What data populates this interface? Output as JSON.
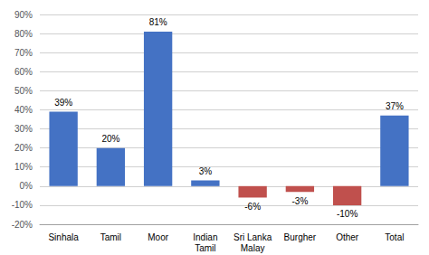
{
  "chart_data": {
    "type": "bar",
    "categories": [
      "Sinhala",
      "Tamil",
      "Moor",
      "Indian\nTamil",
      "Sri Lanka\nMalay",
      "Burgher",
      "Other",
      "Total"
    ],
    "values": [
      39,
      20,
      81,
      3,
      -6,
      -3,
      -10,
      37
    ],
    "value_labels": [
      "39%",
      "20%",
      "81%",
      "3%",
      "-6%",
      "-3%",
      "-10%",
      "37%"
    ],
    "colors": [
      "#4472C4",
      "#4472C4",
      "#4472C4",
      "#4472C4",
      "#C0504D",
      "#C0504D",
      "#C0504D",
      "#4472C4"
    ],
    "ylim": [
      -20,
      90
    ],
    "yticks": [
      {
        "value": -20,
        "label": "-20%"
      },
      {
        "value": -10,
        "label": "-10%"
      },
      {
        "value": 0,
        "label": "0%"
      },
      {
        "value": 10,
        "label": "10%"
      },
      {
        "value": 20,
        "label": "20%"
      },
      {
        "value": 30,
        "label": "30%"
      },
      {
        "value": 40,
        "label": "40%"
      },
      {
        "value": 50,
        "label": "50%"
      },
      {
        "value": 60,
        "label": "60%"
      },
      {
        "value": 70,
        "label": "70%"
      },
      {
        "value": 80,
        "label": "80%"
      },
      {
        "value": 90,
        "label": "90%"
      }
    ],
    "grid": true,
    "data_labels": true
  }
}
